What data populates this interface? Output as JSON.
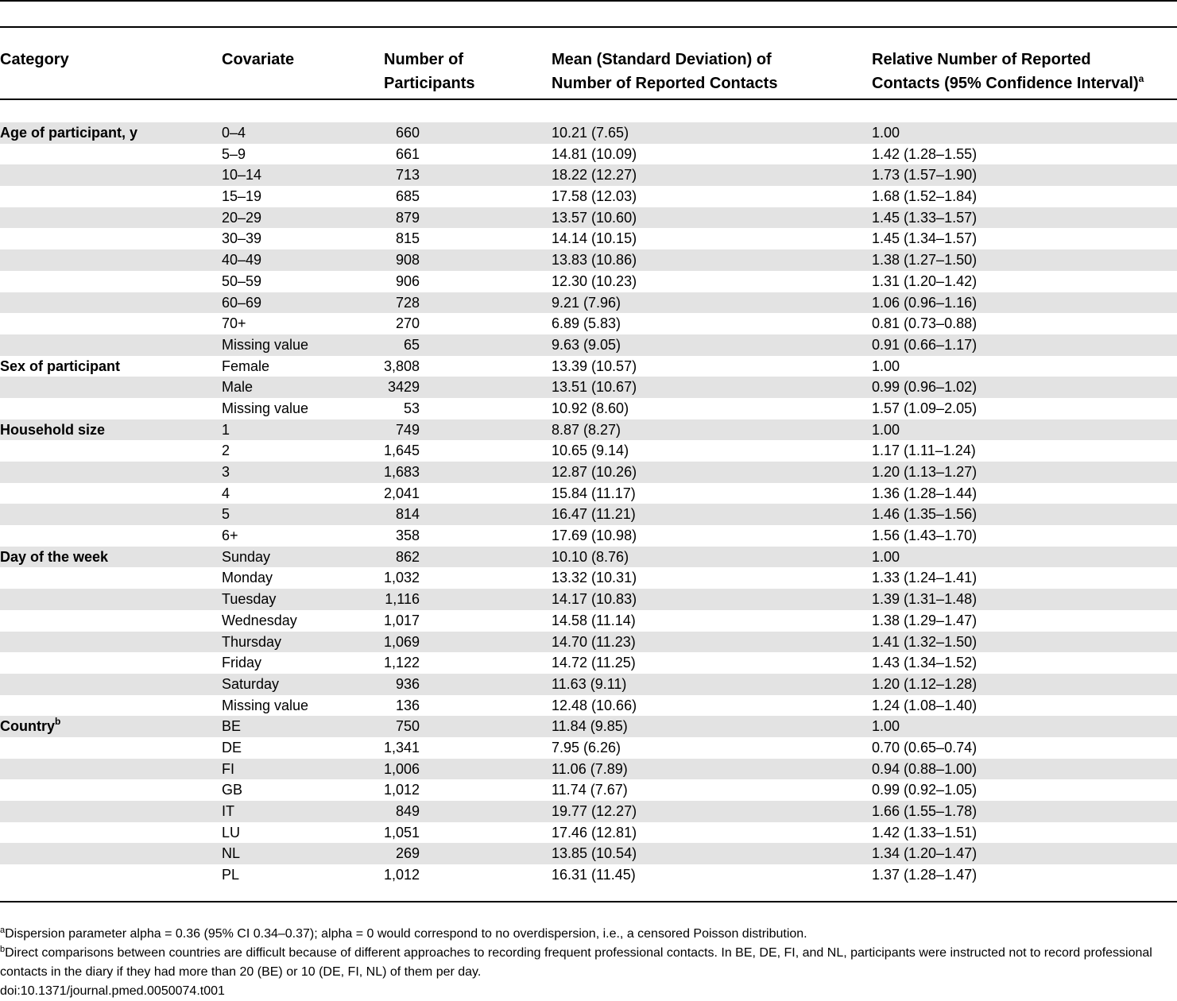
{
  "headers": {
    "category": "Category",
    "covariate": "Covariate",
    "participants_1": "Number of",
    "participants_2": "Participants",
    "mean_1": "Mean (Standard Deviation) of",
    "mean_2": "Number of Reported Contacts",
    "relative_1": "Relative Number of Reported",
    "relative_2": "Contacts (95% Confidence Interval)",
    "relative_sup": "a"
  },
  "rows": [
    {
      "category": "Age of participant, y",
      "covariate": "0–4",
      "participants": "660",
      "mean": "10.21 (7.65)",
      "relative": "1.00"
    },
    {
      "category": "",
      "covariate": "5–9",
      "participants": "661",
      "mean": "14.81 (10.09)",
      "relative": "1.42 (1.28–1.55)"
    },
    {
      "category": "",
      "covariate": "10–14",
      "participants": "713",
      "mean": "18.22 (12.27)",
      "relative": "1.73 (1.57–1.90)"
    },
    {
      "category": "",
      "covariate": "15–19",
      "participants": "685",
      "mean": "17.58 (12.03)",
      "relative": "1.68 (1.52–1.84)"
    },
    {
      "category": "",
      "covariate": "20–29",
      "participants": "879",
      "mean": "13.57 (10.60)",
      "relative": "1.45 (1.33–1.57)"
    },
    {
      "category": "",
      "covariate": "30–39",
      "participants": "815",
      "mean": "14.14 (10.15)",
      "relative": "1.45 (1.34–1.57)"
    },
    {
      "category": "",
      "covariate": "40–49",
      "participants": "908",
      "mean": "13.83 (10.86)",
      "relative": "1.38 (1.27–1.50)"
    },
    {
      "category": "",
      "covariate": "50–59",
      "participants": "906",
      "mean": "12.30 (10.23)",
      "relative": "1.31 (1.20–1.42)"
    },
    {
      "category": "",
      "covariate": "60–69",
      "participants": "728",
      "mean": "9.21 (7.96)",
      "relative": "1.06 (0.96–1.16)"
    },
    {
      "category": "",
      "covariate": "70+",
      "participants": "270",
      "mean": "6.89 (5.83)",
      "relative": "0.81 (0.73–0.88)"
    },
    {
      "category": "",
      "covariate": "Missing value",
      "participants": "65",
      "mean": "9.63 (9.05)",
      "relative": "0.91 (0.66–1.17)"
    },
    {
      "category": "Sex of participant",
      "covariate": "Female",
      "participants": "3,808",
      "mean": "13.39 (10.57)",
      "relative": "1.00"
    },
    {
      "category": "",
      "covariate": "Male",
      "participants": "3429",
      "mean": "13.51 (10.67)",
      "relative": "0.99 (0.96–1.02)"
    },
    {
      "category": "",
      "covariate": "Missing value",
      "participants": "53",
      "mean": "10.92 (8.60)",
      "relative": "1.57 (1.09–2.05)"
    },
    {
      "category": "Household size",
      "covariate": "1",
      "participants": "749",
      "mean": "8.87 (8.27)",
      "relative": "1.00"
    },
    {
      "category": "",
      "covariate": "2",
      "participants": "1,645",
      "mean": "10.65 (9.14)",
      "relative": "1.17 (1.11–1.24)"
    },
    {
      "category": "",
      "covariate": "3",
      "participants": "1,683",
      "mean": "12.87 (10.26)",
      "relative": "1.20 (1.13–1.27)"
    },
    {
      "category": "",
      "covariate": "4",
      "participants": "2,041",
      "mean": "15.84 (11.17)",
      "relative": "1.36 (1.28–1.44)"
    },
    {
      "category": "",
      "covariate": "5",
      "participants": "814",
      "mean": "16.47 (11.21)",
      "relative": "1.46 (1.35–1.56)"
    },
    {
      "category": "",
      "covariate": "6+",
      "participants": "358",
      "mean": "17.69 (10.98)",
      "relative": "1.56 (1.43–1.70)"
    },
    {
      "category": "Day of the week",
      "covariate": "Sunday",
      "participants": "862",
      "mean": "10.10 (8.76)",
      "relative": "1.00"
    },
    {
      "category": "",
      "covariate": "Monday",
      "participants": "1,032",
      "mean": "13.32 (10.31)",
      "relative": "1.33 (1.24–1.41)"
    },
    {
      "category": "",
      "covariate": "Tuesday",
      "participants": "1,116",
      "mean": "14.17 (10.83)",
      "relative": "1.39 (1.31–1.48)"
    },
    {
      "category": "",
      "covariate": "Wednesday",
      "participants": "1,017",
      "mean": "14.58 (11.14)",
      "relative": "1.38 (1.29–1.47)"
    },
    {
      "category": "",
      "covariate": "Thursday",
      "participants": "1,069",
      "mean": "14.70 (11.23)",
      "relative": "1.41 (1.32–1.50)"
    },
    {
      "category": "",
      "covariate": "Friday",
      "participants": "1,122",
      "mean": "14.72 (11.25)",
      "relative": "1.43 (1.34–1.52)"
    },
    {
      "category": "",
      "covariate": "Saturday",
      "participants": "936",
      "mean": "11.63 (9.11)",
      "relative": "1.20 (1.12–1.28)"
    },
    {
      "category": "",
      "covariate": "Missing value",
      "participants": "136",
      "mean": "12.48 (10.66)",
      "relative": "1.24 (1.08–1.40)"
    },
    {
      "category": "Country",
      "category_sup": "b",
      "covariate": "BE",
      "participants": "750",
      "mean": "11.84 (9.85)",
      "relative": "1.00"
    },
    {
      "category": "",
      "covariate": "DE",
      "participants": "1,341",
      "mean": "7.95 (6.26)",
      "relative": "0.70 (0.65–0.74)"
    },
    {
      "category": "",
      "covariate": "FI",
      "participants": "1,006",
      "mean": "11.06 (7.89)",
      "relative": "0.94 (0.88–1.00)"
    },
    {
      "category": "",
      "covariate": "GB",
      "participants": "1,012",
      "mean": "11.74 (7.67)",
      "relative": "0.99 (0.92–1.05)"
    },
    {
      "category": "",
      "covariate": "IT",
      "participants": "849",
      "mean": "19.77 (12.27)",
      "relative": "1.66 (1.55–1.78)"
    },
    {
      "category": "",
      "covariate": "LU",
      "participants": "1,051",
      "mean": "17.46 (12.81)",
      "relative": "1.42 (1.33–1.51)"
    },
    {
      "category": "",
      "covariate": "NL",
      "participants": "269",
      "mean": "13.85 (10.54)",
      "relative": "1.34 (1.20–1.47)"
    },
    {
      "category": "",
      "covariate": "PL",
      "participants": "1,012",
      "mean": "16.31 (11.45)",
      "relative": "1.37 (1.28–1.47)"
    }
  ],
  "footnotes": {
    "a_mark": "a",
    "a_text": "Dispersion parameter alpha = 0.36 (95% CI 0.34–0.37); alpha = 0 would correspond to no overdispersion, i.e., a censored Poisson distribution.",
    "b_mark": "b",
    "b_text": "Direct comparisons between countries are difficult because of different approaches to recording frequent professional contacts. In BE, DE, FI, and NL, participants were instructed not to record professional contacts in the diary if they had more than 20 (BE) or 10 (DE, FI, NL) of them per day.",
    "doi": "doi:10.1371/journal.pmed.0050074.t001"
  }
}
